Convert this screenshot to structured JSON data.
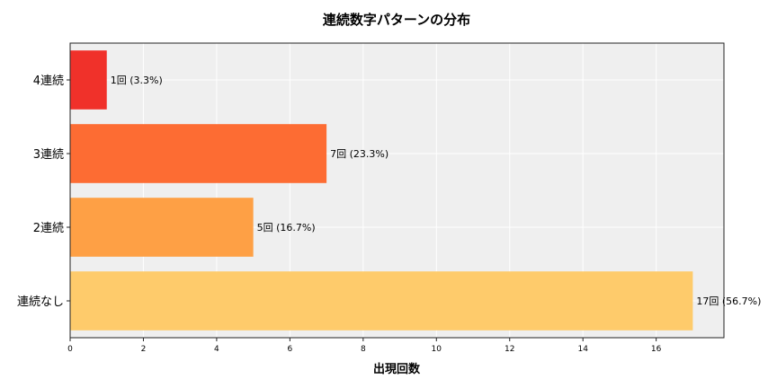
{
  "chart_data": {
    "type": "bar",
    "orientation": "horizontal",
    "title": "連続数字パターンの分布",
    "xlabel": "出現回数",
    "ylabel": "",
    "categories": [
      "連続なし",
      "2連続",
      "3連続",
      "4連続"
    ],
    "values": [
      17,
      5,
      7,
      1
    ],
    "data_labels": [
      "17回 (56.7%)",
      "5回 (16.7%)",
      "7回 (23.3%)",
      "1回 (3.3%)"
    ],
    "colors": [
      "#fecb6b",
      "#fea045",
      "#fd6c33",
      "#f0312a"
    ],
    "xlim": [
      0,
      17.85
    ],
    "xticks": [
      0,
      2,
      4,
      6,
      8,
      10,
      12,
      14,
      16
    ],
    "grid": true,
    "plot_background": "#efefef"
  }
}
